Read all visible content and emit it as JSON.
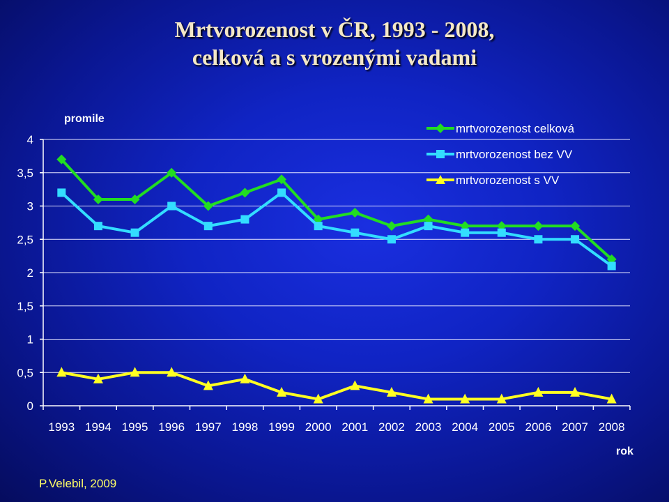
{
  "title_line1": "Mrtvorozenost v ČR, 1993 - 2008,",
  "title_line2": "celková a s vrozenými vadami",
  "author": "P.Velebil, 2009",
  "chart_data": {
    "type": "line",
    "title": "Mrtvorozenost v ČR, 1993 - 2008, celková a s vrozenými vadami",
    "ylabel": "promile",
    "xlabel": "rok",
    "ylim": [
      0,
      4
    ],
    "yticks": [
      "0",
      "0,5",
      "1",
      "1,5",
      "2",
      "2,5",
      "3",
      "3,5",
      "4"
    ],
    "grid": true,
    "legend_position": "top-right",
    "categories": [
      "1993",
      "1994",
      "1995",
      "1996",
      "1997",
      "1998",
      "1999",
      "2000",
      "2001",
      "2002",
      "2003",
      "2004",
      "2005",
      "2006",
      "2007",
      "2008"
    ],
    "series": [
      {
        "name": "mrtvorozenost celková",
        "color": "#22dd22",
        "marker": "diamond",
        "values": [
          3.7,
          3.1,
          3.1,
          3.5,
          3.0,
          3.2,
          3.4,
          2.8,
          2.9,
          2.7,
          2.8,
          2.7,
          2.7,
          2.7,
          2.7,
          2.2
        ]
      },
      {
        "name": "mrtvorozenost bez VV",
        "color": "#33ddff",
        "marker": "square",
        "values": [
          3.2,
          2.7,
          2.6,
          3.0,
          2.7,
          2.8,
          3.2,
          2.7,
          2.6,
          2.5,
          2.7,
          2.6,
          2.6,
          2.5,
          2.5,
          2.1
        ]
      },
      {
        "name": "mrtvorozenost s VV",
        "color": "#ffff22",
        "marker": "triangle",
        "values": [
          0.5,
          0.4,
          0.5,
          0.5,
          0.3,
          0.4,
          0.2,
          0.1,
          0.3,
          0.2,
          0.1,
          0.1,
          0.1,
          0.2,
          0.2,
          0.1
        ]
      }
    ]
  }
}
